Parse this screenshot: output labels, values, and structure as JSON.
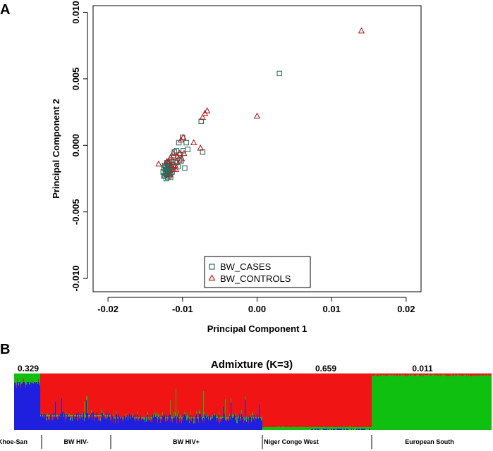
{
  "panel_a_label": "A",
  "panel_b_label": "B",
  "colors": {
    "cases": "#2e6b5e",
    "controls": "#b22222",
    "adm_blue": "#1f1fe0",
    "adm_red": "#f01414",
    "adm_green": "#10c010"
  },
  "chart_data": [
    {
      "type": "scatter",
      "title": "",
      "xlabel": "Principal Component 1",
      "ylabel": "Principal Component 2",
      "xlim": [
        -0.022,
        0.022
      ],
      "ylim": [
        -0.011,
        0.0105
      ],
      "xticks": [
        -0.02,
        -0.01,
        0.0,
        0.01,
        0.02
      ],
      "xtick_labels": [
        "-0.02",
        "-0.01",
        "0.00",
        "0.01",
        "0.02"
      ],
      "yticks": [
        -0.01,
        -0.005,
        0.0,
        0.005,
        0.01
      ],
      "ytick_labels": [
        "-0.010",
        "-0.005",
        "0.000",
        "0.005",
        "0.010"
      ],
      "legend_position": "bottom-center",
      "series": [
        {
          "name": "BW_CASES",
          "marker": "square",
          "points": [
            [
              0.003,
              0.0054
            ],
            [
              -0.0075,
              0.0018
            ],
            [
              -0.0073,
              -0.0005
            ],
            [
              -0.0095,
              0.0002
            ],
            [
              -0.01,
              0.0006
            ],
            [
              -0.0105,
              0.0002
            ],
            [
              -0.0108,
              -0.0004
            ],
            [
              -0.0099,
              -0.0004
            ],
            [
              -0.0103,
              -0.0007
            ],
            [
              -0.0112,
              -0.0009
            ],
            [
              -0.0109,
              -0.0013
            ],
            [
              -0.0106,
              -0.0016
            ],
            [
              -0.0102,
              -0.0012
            ],
            [
              -0.0111,
              -0.0005
            ],
            [
              -0.0115,
              -0.0011
            ],
            [
              -0.0118,
              -0.0014
            ],
            [
              -0.012,
              -0.0016
            ],
            [
              -0.0122,
              -0.0018
            ],
            [
              -0.0119,
              -0.002
            ],
            [
              -0.0121,
              -0.0022
            ],
            [
              -0.0117,
              -0.0019
            ],
            [
              -0.0123,
              -0.0021
            ],
            [
              -0.0125,
              -0.0017
            ],
            [
              -0.012,
              -0.0024
            ],
            [
              -0.0118,
              -0.0023
            ],
            [
              -0.0122,
              -0.0025
            ],
            [
              -0.0116,
              -0.0021
            ],
            [
              -0.0124,
              -0.0015
            ],
            [
              -0.0121,
              -0.0013
            ],
            [
              -0.0119,
              -0.0017
            ],
            [
              -0.0115,
              -0.0018
            ],
            [
              -0.0113,
              -0.0016
            ],
            [
              -0.0117,
              -0.0013
            ],
            [
              -0.0123,
              -0.0019
            ],
            [
              -0.0126,
              -0.002
            ],
            [
              -0.0121,
              -0.0019
            ],
            [
              -0.0119,
              -0.0015
            ],
            [
              -0.0116,
              -0.0024
            ],
            [
              -0.0114,
              -0.002
            ],
            [
              -0.012,
              -0.002
            ],
            [
              -0.0097,
              -0.0017
            ],
            [
              -0.0104,
              -0.0011
            ],
            [
              -0.0093,
              -0.0003
            ],
            [
              -0.0122,
              -0.0023
            ],
            [
              -0.0118,
              -0.0021
            ],
            [
              -0.0124,
              -0.0023
            ],
            [
              -0.0117,
              -0.0016
            ],
            [
              -0.012,
              -0.0014
            ],
            [
              -0.0123,
              -0.0016
            ],
            [
              -0.0125,
              -0.0023
            ]
          ]
        },
        {
          "name": "BW_CONTROLS",
          "marker": "triangle",
          "points": [
            [
              0.014,
              0.0086
            ],
            [
              -0.007,
              0.0024
            ],
            [
              -0.0067,
              0.0026
            ],
            [
              0.0,
              0.0022
            ],
            [
              -0.0073,
              0.0021
            ],
            [
              -0.0132,
              -0.0014
            ],
            [
              -0.0085,
              0.0002
            ],
            [
              -0.0076,
              -0.0002
            ],
            [
              -0.0099,
              0.0006
            ],
            [
              -0.0102,
              0.0004
            ],
            [
              -0.0107,
              -0.0008
            ],
            [
              -0.0113,
              -0.0006
            ],
            [
              -0.011,
              -0.0015
            ],
            [
              -0.0116,
              -0.0009
            ],
            [
              -0.0119,
              -0.0012
            ],
            [
              -0.0112,
              -0.0018
            ],
            [
              -0.0108,
              -0.0012
            ],
            [
              -0.0121,
              -0.0012
            ],
            [
              -0.0115,
              -0.0015
            ],
            [
              -0.0101,
              -0.001
            ],
            [
              -0.0098,
              -0.0006
            ],
            [
              -0.0109,
              -0.0018
            ],
            [
              -0.0117,
              -0.0022
            ],
            [
              -0.0104,
              -0.0006
            ]
          ]
        }
      ]
    },
    {
      "type": "bar",
      "title": "Admixture (K=3)",
      "stacked": true,
      "component_order_bottom_to_top": [
        "blue",
        "green",
        "red"
      ],
      "annotations": [
        "0.329",
        "0.659",
        "0.011"
      ],
      "groups": [
        {
          "label": "Khoe-San",
          "blue": 0.85,
          "green": 0.13,
          "red": 0.02
        },
        {
          "label": "BW HIV-",
          "blue": 0.24,
          "green": 0.02,
          "red": 0.74
        },
        {
          "label": "BW HIV+",
          "blue": 0.2,
          "green": 0.02,
          "red": 0.78
        },
        {
          "label": "Niger Congo West",
          "blue": 0.01,
          "green": 0.04,
          "red": 0.95
        },
        {
          "label": "European South",
          "blue": 0.0,
          "green": 0.98,
          "red": 0.02
        }
      ]
    }
  ]
}
